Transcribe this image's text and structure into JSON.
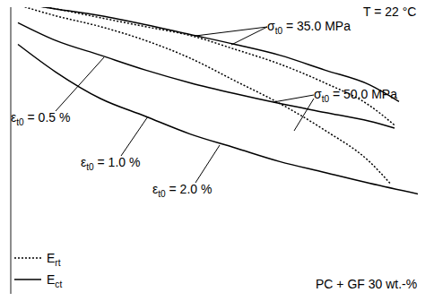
{
  "chart_data": {
    "type": "line",
    "annotations": [
      "T = 22 °C",
      "σt0 = 35.0 MPa",
      "σt0 = 50.0 MPa",
      "εt0 = 0.5 %",
      "εt0 = 1.0 %",
      "εt0 = 2.0 %",
      "PC + GF 30 wt.-%"
    ],
    "xlim": [
      -0.5,
      4.1
    ],
    "xticks": [
      0,
      1,
      2,
      3,
      4
    ],
    "ylim": [
      0,
      3
    ],
    "yticks": [
      0,
      1,
      2,
      3
    ],
    "grid": true,
    "tick_labels": false,
    "legend": "lower left",
    "series": [
      {
        "name": "Ect",
        "color": "#000000",
        "line_style": "solid",
        "x": [
          -0.42,
          0,
          0.5,
          1,
          1.5,
          2,
          2.5,
          3,
          3.5,
          3.83
        ],
        "values": [
          2.97,
          2.91,
          2.84,
          2.75,
          2.65,
          2.55,
          2.44,
          2.29,
          2.14,
          1.97
        ]
      },
      {
        "name": "Ert",
        "color": "#000000",
        "line_style": "dotted",
        "x": [
          -0.42,
          0,
          0.5,
          1,
          1.5,
          2,
          2.5,
          3,
          3.5,
          3.78
        ],
        "values": [
          2.97,
          2.91,
          2.82,
          2.73,
          2.64,
          2.5,
          2.35,
          2.16,
          1.93,
          1.73
        ]
      },
      {
        "name": "Ect",
        "color": "#000000",
        "line_style": "solid",
        "x": [
          -0.42,
          0,
          0.5,
          1,
          1.5,
          2,
          2.5,
          3,
          3.5,
          3.78
        ],
        "values": [
          2.77,
          2.59,
          2.44,
          2.29,
          2.16,
          2.05,
          1.95,
          1.86,
          1.77,
          1.7
        ]
      },
      {
        "name": "Ert",
        "color": "#000000",
        "line_style": "dotted",
        "x": [
          -0.42,
          0,
          0.5,
          1,
          1.5,
          2,
          2.5,
          3,
          3.5,
          3.73
        ],
        "values": [
          2.95,
          2.84,
          2.73,
          2.59,
          2.41,
          2.18,
          1.95,
          1.68,
          1.36,
          1.14
        ]
      },
      {
        "name": "Ect",
        "color": "#000000",
        "line_style": "solid",
        "x": [
          -0.42,
          0,
          0.5,
          1,
          1.5,
          2,
          2.5,
          3,
          3.5,
          4.1
        ],
        "values": [
          2.55,
          2.27,
          2.0,
          1.82,
          1.64,
          1.5,
          1.36,
          1.25,
          1.14,
          1.02
        ]
      }
    ]
  }
}
